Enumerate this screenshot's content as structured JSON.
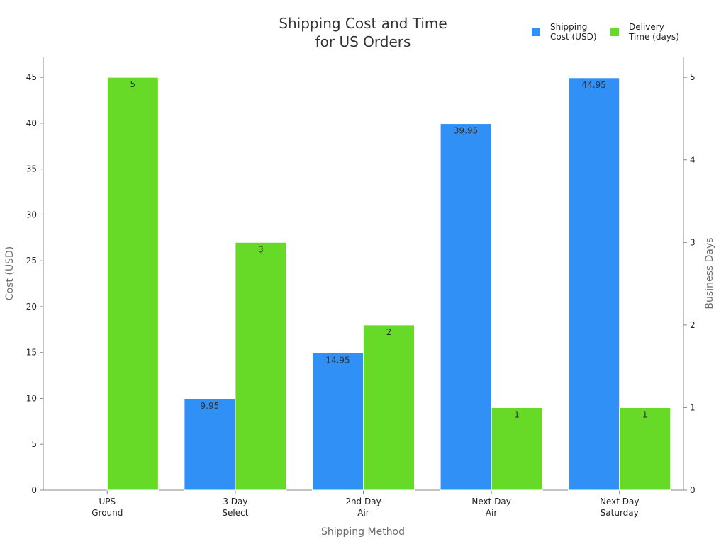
{
  "chart_data": {
    "type": "bar",
    "title_lines": [
      "Shipping Cost and Time",
      "for US Orders"
    ],
    "categories": [
      [
        "UPS",
        "Ground"
      ],
      [
        "3 Day",
        "Select"
      ],
      [
        "2nd Day",
        "Air"
      ],
      [
        "Next Day",
        "Air"
      ],
      [
        "Next Day",
        "Saturday"
      ]
    ],
    "series": [
      {
        "name_lines": [
          "Shipping",
          "Cost (USD)"
        ],
        "axis": "left",
        "color": "#3090F5",
        "values": [
          null,
          9.95,
          14.95,
          39.95,
          44.95
        ],
        "labels": [
          "",
          "9.95",
          "14.95",
          "39.95",
          "44.95"
        ]
      },
      {
        "name_lines": [
          "Delivery",
          "Time (days)"
        ],
        "axis": "right",
        "color": "#66DA26",
        "values": [
          5,
          3,
          2,
          1,
          1
        ],
        "labels": [
          "5",
          "3",
          "2",
          "1",
          "1"
        ]
      }
    ],
    "xlabel": "Shipping Method",
    "ylabel_left": "Cost (USD)",
    "ylabel_right": "Business Days",
    "ylim_left": [
      0,
      47.25
    ],
    "ylim_right": [
      0,
      5.25
    ],
    "yticks_left": [
      "0",
      "5",
      "10",
      "15",
      "20",
      "25",
      "30",
      "35",
      "40",
      "45"
    ],
    "yticks_right": [
      "0",
      "1",
      "2",
      "3",
      "4",
      "5"
    ],
    "legend_position": "top-right",
    "grid": false
  }
}
